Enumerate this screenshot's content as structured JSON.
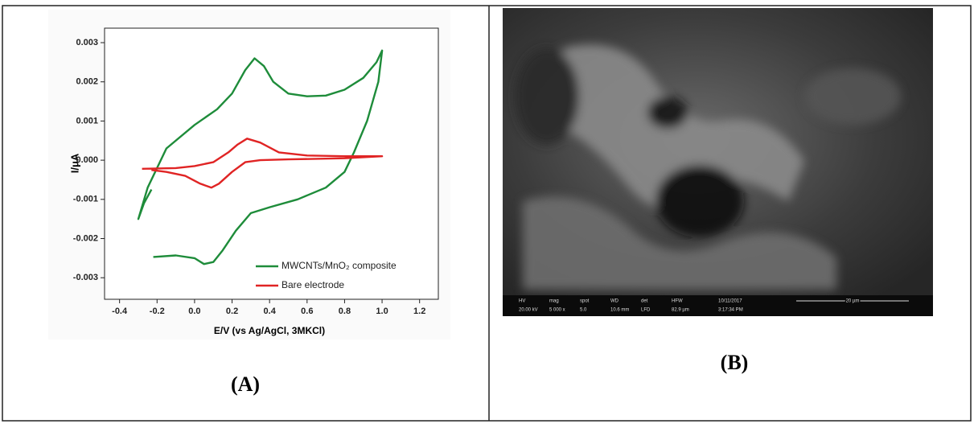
{
  "chart_data": {
    "type": "line",
    "xlabel": "E/V (vs Ag/AgCl, 3MKCl)",
    "ylabel": "I/μA",
    "xlim": [
      -0.48,
      1.3
    ],
    "ylim": [
      -0.00355,
      0.00337
    ],
    "xticks": [
      -0.4,
      -0.2,
      {
        "value": 0,
        "label": "0.0"
      },
      0.2,
      0.4,
      0.6,
      0.8,
      {
        "value": 1,
        "label": "1.0"
      },
      1.2
    ],
    "yticks": [
      0.003,
      0.002,
      0.001,
      {
        "value": 0,
        "label": "0.000"
      },
      -0.001,
      -0.002,
      -0.003
    ],
    "grid": false,
    "legend": "lower right",
    "series": [
      {
        "name": "MWCNTs/MnO₂ composite",
        "color": "#1e8c3a",
        "x": [
          -0.23,
          -0.27,
          -0.3,
          -0.25,
          -0.15,
          0.0,
          0.12,
          0.2,
          0.27,
          0.32,
          0.37,
          0.42,
          0.5,
          0.6,
          0.7,
          0.8,
          0.9,
          0.97,
          1.0,
          0.98,
          0.92,
          0.85,
          0.8,
          0.7,
          0.55,
          0.4,
          0.3,
          0.22,
          0.15,
          0.1,
          0.05,
          0.0,
          -0.1,
          -0.22
        ],
        "values": [
          -0.00075,
          -0.0011,
          -0.0015,
          -0.0007,
          0.0003,
          0.0009,
          0.0013,
          0.0017,
          0.0023,
          0.0026,
          0.0024,
          0.002,
          0.0017,
          0.00163,
          0.00165,
          0.0018,
          0.0021,
          0.0025,
          0.0028,
          0.002,
          0.001,
          0.0002,
          -0.0003,
          -0.0007,
          -0.001,
          -0.0012,
          -0.00135,
          -0.0018,
          -0.0023,
          -0.0026,
          -0.00265,
          -0.0025,
          -0.00243,
          -0.00247
        ]
      },
      {
        "name": "Bare electrode",
        "color": "#e02424",
        "x": [
          -0.28,
          -0.1,
          0.0,
          0.1,
          0.18,
          0.23,
          0.28,
          0.35,
          0.45,
          0.6,
          0.8,
          1.0,
          0.8,
          0.5,
          0.35,
          0.27,
          0.2,
          0.13,
          0.09,
          0.03,
          -0.05,
          -0.15,
          -0.23
        ],
        "values": [
          -0.00022,
          -0.0002,
          -0.00015,
          -5e-05,
          0.0002,
          0.0004,
          0.00055,
          0.00045,
          0.0002,
          0.00012,
          0.0001,
          0.0001,
          5e-05,
          2e-05,
          0.0,
          -5e-05,
          -0.0003,
          -0.0006,
          -0.0007,
          -0.0006,
          -0.0004,
          -0.0003,
          -0.00025
        ]
      }
    ]
  },
  "panel_labels": [
    "(A)",
    "(B)"
  ],
  "sem_image": {
    "info_bar": [
      {
        "label": "HV",
        "value": "20.00 kV"
      },
      {
        "label": "mag",
        "value": "5 000 x"
      },
      {
        "label": "spot",
        "value": "5.0"
      },
      {
        "label": "WD",
        "value": "10.6 mm"
      },
      {
        "label": "det",
        "value": "LFD"
      },
      {
        "label": "HFW",
        "value": "82.9 µm"
      },
      {
        "label": "10/11/2017",
        "value": "3:17:34 PM"
      }
    ],
    "scale": "20 µm"
  }
}
